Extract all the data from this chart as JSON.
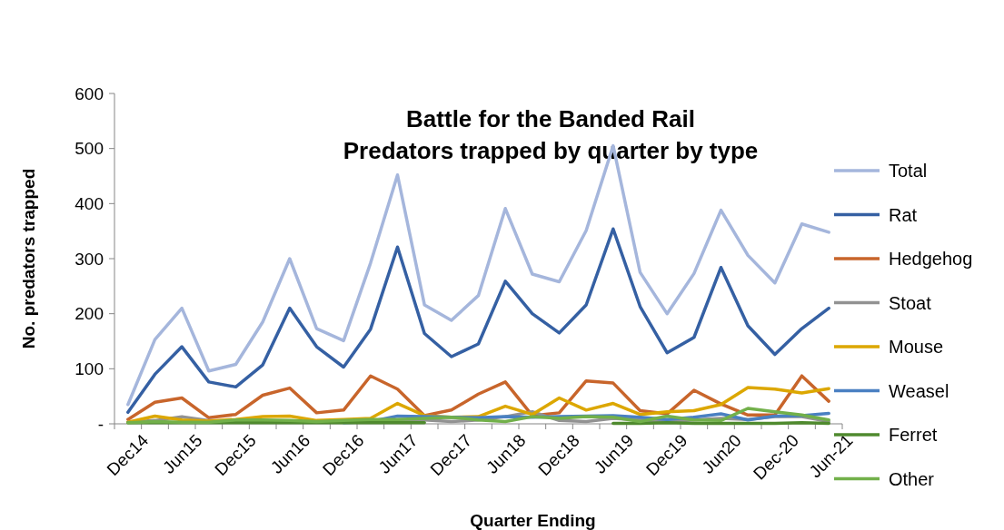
{
  "chart_data": {
    "type": "line",
    "title": "Battle for the Banded Rail\nPredators trapped by quarter by type",
    "xlabel": "Quarter Ending",
    "ylabel": "No. predators trapped",
    "categories": [
      "Dec14",
      null,
      "Jun15",
      null,
      "Dec15",
      null,
      "Jun16",
      null,
      "Dec16",
      null,
      "Jun17",
      null,
      "Dec17",
      null,
      "Jun18",
      null,
      "Dec18",
      null,
      "Jun19",
      null,
      "Dec19",
      null,
      "Jun20",
      null,
      "Dec-20",
      null,
      "Jun-21"
    ],
    "ylim": [
      0,
      600
    ],
    "yticks": [
      {
        "value": 0,
        "label": "-"
      },
      100,
      200,
      300,
      400,
      500,
      600
    ],
    "grid": false,
    "legend": "right",
    "marker": "none",
    "line_style": "solid",
    "series": [
      {
        "name": "Total",
        "color": "#a5b6dc",
        "values": [
          35,
          153,
          210,
          96,
          108,
          185,
          300,
          173,
          151,
          292,
          452,
          216,
          188,
          233,
          391,
          272,
          258,
          351,
          505,
          275,
          200,
          273,
          388,
          306,
          256,
          363,
          348
        ]
      },
      {
        "name": "Rat",
        "color": "#3560a3",
        "values": [
          21,
          90,
          140,
          76,
          67,
          107,
          210,
          140,
          103,
          172,
          321,
          164,
          122,
          145,
          259,
          200,
          165,
          216,
          354,
          213,
          129,
          157,
          284,
          178,
          126,
          173,
          210
        ]
      },
      {
        "name": "Hedgehog",
        "color": "#c8652b",
        "values": [
          8,
          39,
          47,
          11,
          17,
          52,
          65,
          20,
          25,
          87,
          63,
          15,
          25,
          54,
          76,
          15,
          20,
          78,
          74,
          24,
          18,
          61,
          36,
          16,
          16,
          87,
          41
        ]
      },
      {
        "name": "Stoat",
        "color": "#929292",
        "values": [
          3,
          6,
          13,
          6,
          4,
          4,
          3,
          3,
          3,
          4,
          7,
          7,
          4,
          7,
          13,
          22,
          6,
          4,
          10,
          7,
          4,
          7,
          10,
          8,
          13,
          13,
          4
        ]
      },
      {
        "name": "Mouse",
        "color": "#dca700",
        "values": [
          3,
          14,
          7,
          5,
          8,
          13,
          14,
          6,
          8,
          10,
          37,
          15,
          12,
          13,
          32,
          17,
          47,
          25,
          37,
          17,
          22,
          24,
          35,
          66,
          63,
          56,
          64
        ]
      },
      {
        "name": "Weasel",
        "color": "#4a80c2",
        "values": [
          null,
          null,
          null,
          null,
          null,
          null,
          null,
          null,
          2,
          4,
          14,
          13,
          12,
          11,
          13,
          12,
          13,
          14,
          15,
          12,
          8,
          12,
          18,
          7,
          14,
          15,
          19
        ]
      },
      {
        "name": "Ferret",
        "color": "#4f8a2e",
        "values": [
          2,
          2,
          2,
          2,
          2,
          2,
          2,
          2,
          2,
          2,
          2,
          2,
          null,
          null,
          null,
          null,
          null,
          null,
          1,
          1,
          2,
          1,
          1,
          1,
          1,
          2,
          1
        ]
      },
      {
        "name": "Other",
        "color": "#72b04a",
        "values": [
          2,
          4,
          3,
          3,
          7,
          7,
          6,
          4,
          6,
          8,
          8,
          10,
          12,
          7,
          4,
          13,
          10,
          13,
          12,
          4,
          14,
          7,
          6,
          28,
          22,
          16,
          7
        ]
      }
    ]
  }
}
